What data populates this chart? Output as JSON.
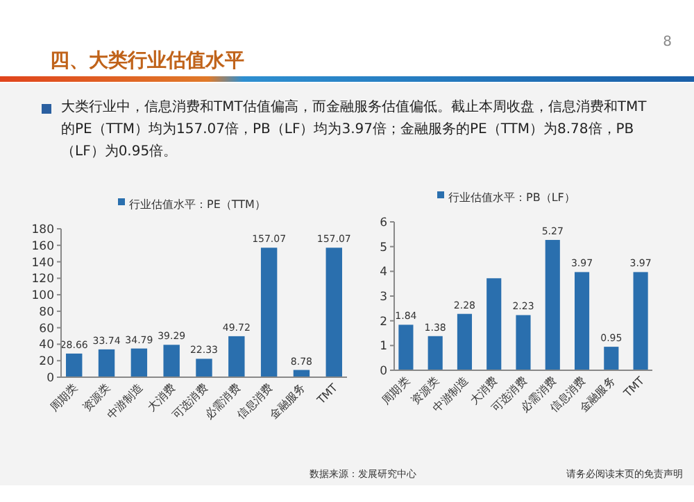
{
  "chart_data": [
    {
      "type": "bar",
      "title": "四、大类行业估值水平",
      "subtitle": "大类行业中，信息消费和TMT估值偏高，而金融服务估值偏低。截止本周收盘，信息消费和TMT的PE（TTM）均为157.07倍，PB（LF）均为3.97倍；金融服务的PE（TTM）为8.78倍，PB（LF）为0.95倍。",
      "categories": [
        "周期类",
        "资源类",
        "中游制造",
        "大消费",
        "可选消费",
        "必需消费",
        "信息消费",
        "金融服务",
        "TMT"
      ],
      "series": [
        {
          "name": "行业估值水平：PE（TTM）",
          "color": "#2a6fae",
          "values": [
            28.66,
            33.74,
            34.79,
            39.29,
            22.33,
            49.72,
            157.07,
            8.78,
            157.07
          ]
        }
      ],
      "ylim": [
        0,
        180
      ],
      "yticks": [
        0,
        20,
        40,
        60,
        80,
        100,
        120,
        140,
        160,
        180
      ],
      "data_labels": true,
      "legend": "top",
      "grid": false,
      "annotations": [
        "8"
      ]
    },
    {
      "type": "bar",
      "categories": [
        "周期类",
        "资源类",
        "中游制造",
        "大消费",
        "可选消费",
        "必需消费",
        "信息消费",
        "金融服务",
        "TMT"
      ],
      "series": [
        {
          "name": "行业估值水平：PB（LF）",
          "color": "#2a6fae",
          "values": [
            1.84,
            1.38,
            2.28,
            3.72,
            2.23,
            5.27,
            3.97,
            0.95,
            3.97
          ]
        }
      ],
      "value_labels": [
        "1.84",
        "1.38",
        "2.28",
        null,
        "2.23",
        "5.27",
        "3.97",
        "0.95",
        "3.97"
      ],
      "ylim": [
        0,
        6
      ],
      "yticks": [
        0,
        1,
        2,
        3,
        4,
        5,
        6
      ],
      "legend": "top",
      "grid": false,
      "annotations": [
        "数据来源：发展研究中心",
        "请务必阅读末页的免责声明"
      ]
    }
  ]
}
